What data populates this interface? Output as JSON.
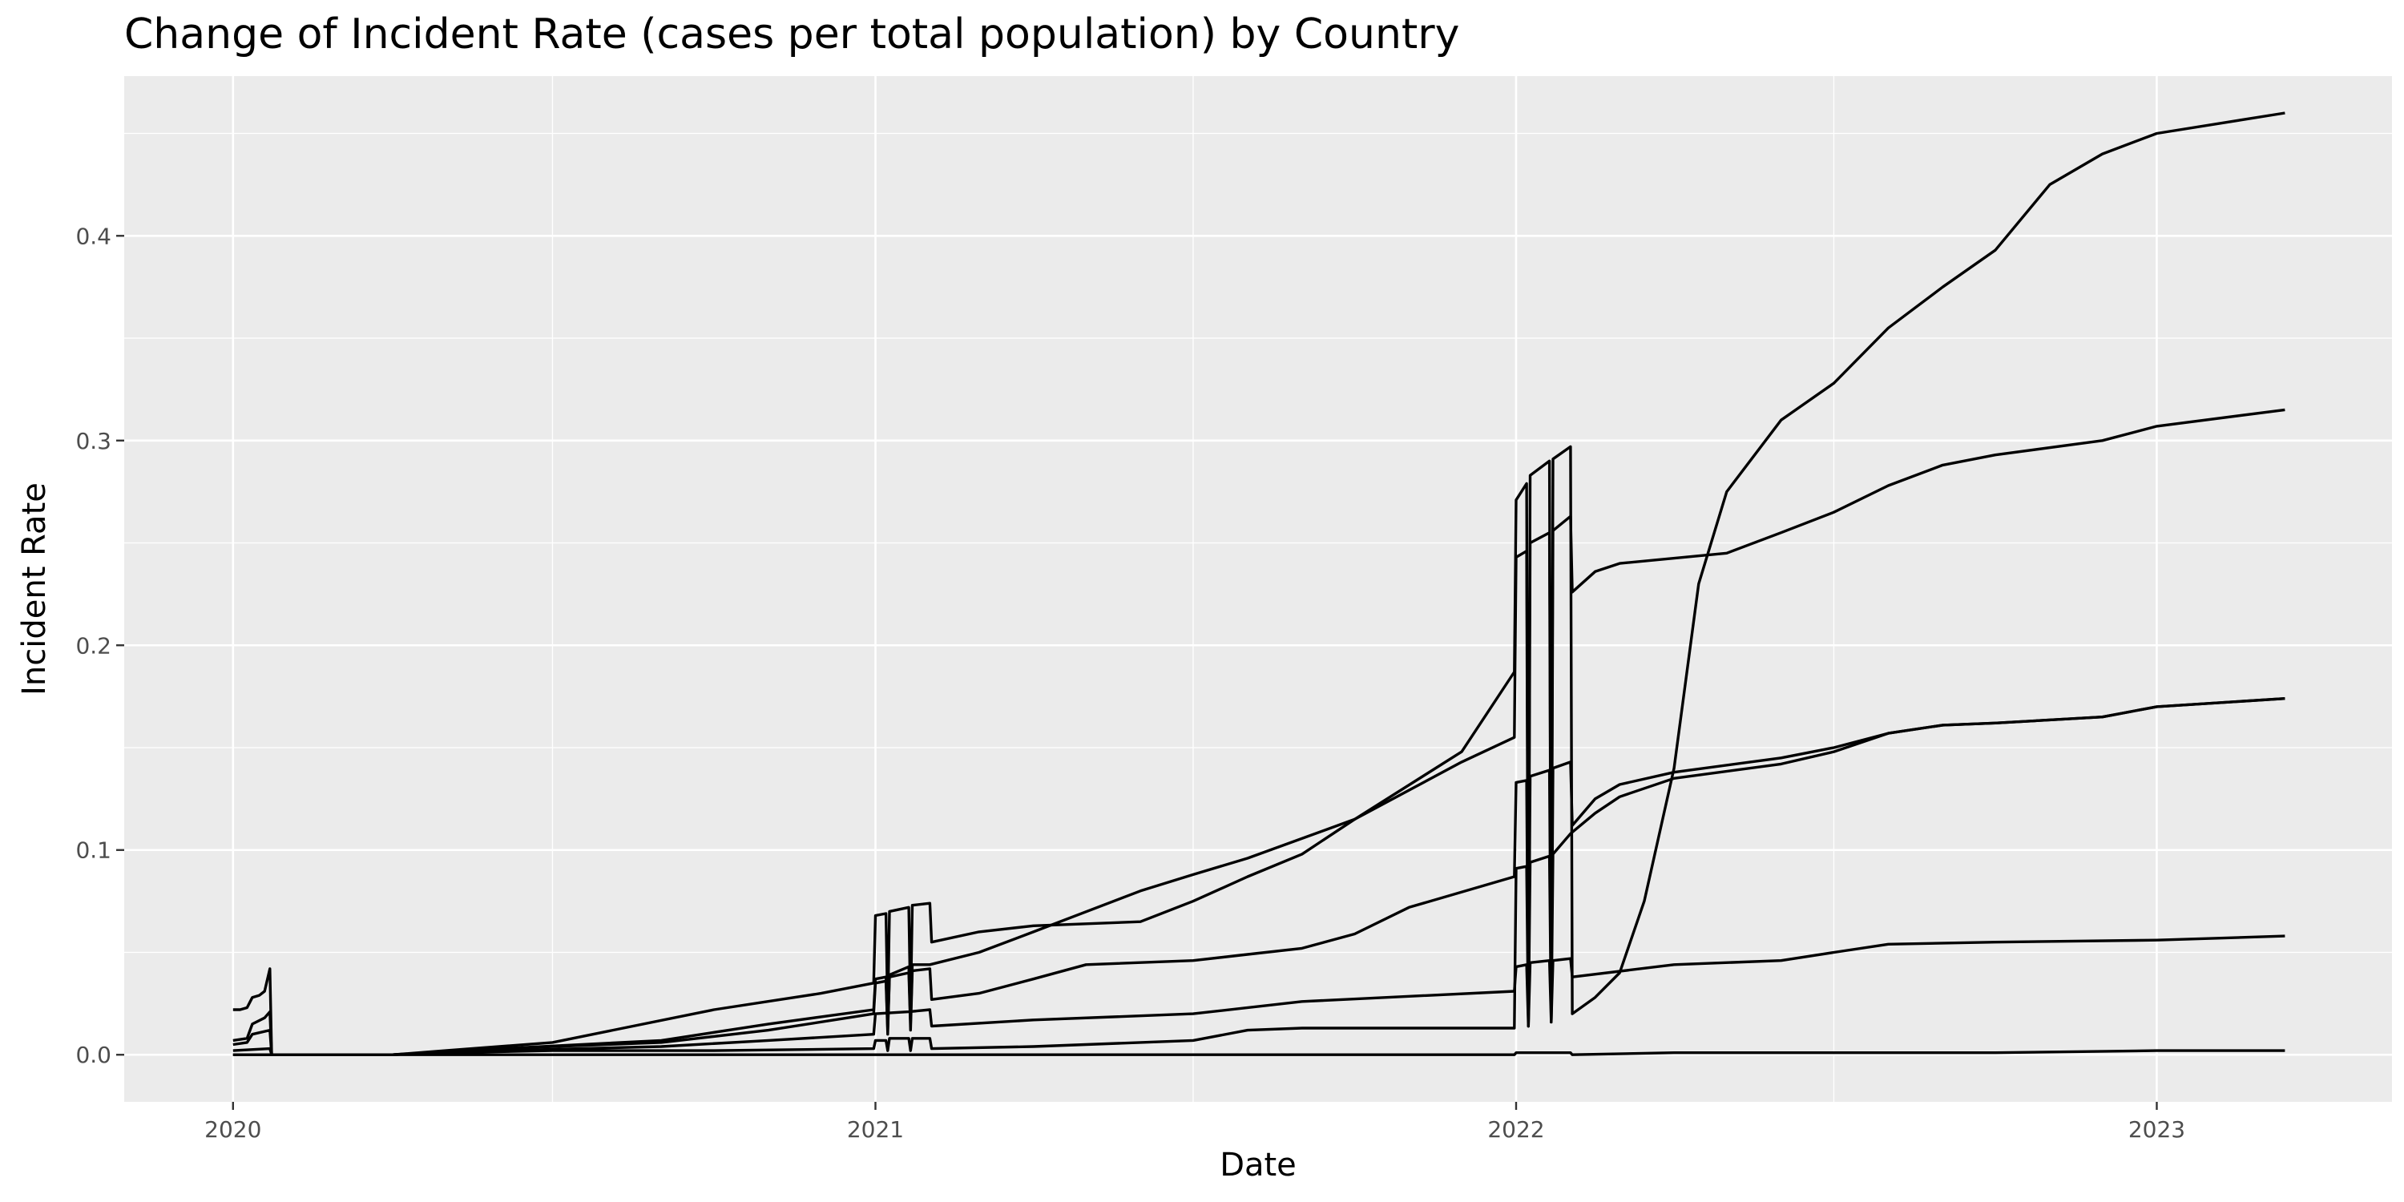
{
  "chart_data": {
    "type": "line",
    "title": "Change of Incident Rate (cases per total population) by Country",
    "xlabel": "Date",
    "ylabel": "Incident Rate",
    "x_type": "date",
    "xlim": [
      "2019-10-31",
      "2023-05-15"
    ],
    "ylim": [
      -0.023,
      0.478
    ],
    "x_ticks": [
      {
        "label": "2020",
        "date": "2020-01-01"
      },
      {
        "label": "2021",
        "date": "2021-01-01"
      },
      {
        "label": "2022",
        "date": "2022-01-01"
      },
      {
        "label": "2023",
        "date": "2023-01-01"
      }
    ],
    "x_minor_ticks": [
      "2020-07-01",
      "2021-07-01",
      "2022-07-01"
    ],
    "y_ticks": [
      0.0,
      0.1,
      0.2,
      0.3,
      0.4
    ],
    "y_tick_labels": [
      "0.0",
      "0.1",
      "0.2",
      "0.3",
      "0.4"
    ],
    "y_minor_ticks": [
      0.05,
      0.15,
      0.25,
      0.35,
      0.45
    ],
    "grid": true,
    "legend": "none",
    "colors": {
      "panel": "#ebebeb",
      "grid": "#ffffff",
      "line": "#000000",
      "tick_text": "#4d4d4d"
    },
    "series": [
      {
        "points": [
          [
            "2020-01-01",
            0.022
          ],
          [
            "2020-01-05",
            0.022
          ],
          [
            "2020-01-09",
            0.023
          ],
          [
            "2020-01-12",
            0.028
          ],
          [
            "2020-01-16",
            0.029
          ],
          [
            "2020-01-19",
            0.031
          ],
          [
            "2020-01-22",
            0.042
          ],
          [
            "2020-01-23",
            0.0
          ],
          [
            "2020-04-01",
            0.0
          ],
          [
            "2020-05-01",
            0.001
          ],
          [
            "2020-07-01",
            0.002
          ],
          [
            "2020-10-01",
            0.002
          ],
          [
            "2020-12-31",
            0.003
          ],
          [
            "2021-01-01",
            0.007
          ],
          [
            "2021-01-07",
            0.007
          ],
          [
            "2021-01-08",
            0.002
          ],
          [
            "2021-01-09",
            0.008
          ],
          [
            "2021-01-20",
            0.008
          ],
          [
            "2021-01-21",
            0.002
          ],
          [
            "2021-01-22",
            0.008
          ],
          [
            "2021-02-01",
            0.008
          ],
          [
            "2021-02-02",
            0.003
          ],
          [
            "2021-04-01",
            0.004
          ],
          [
            "2021-06-01",
            0.006
          ],
          [
            "2021-07-01",
            0.007
          ],
          [
            "2021-08-01",
            0.012
          ],
          [
            "2021-09-01",
            0.013
          ],
          [
            "2021-12-31",
            0.013
          ],
          [
            "2022-01-01",
            0.091
          ],
          [
            "2022-01-07",
            0.092
          ],
          [
            "2022-01-08",
            0.014
          ],
          [
            "2022-01-09",
            0.094
          ],
          [
            "2022-01-20",
            0.097
          ],
          [
            "2022-01-21",
            0.016
          ],
          [
            "2022-01-22",
            0.098
          ],
          [
            "2022-02-01",
            0.108
          ],
          [
            "2022-02-15",
            0.118
          ],
          [
            "2022-03-01",
            0.126
          ],
          [
            "2022-04-01",
            0.135
          ],
          [
            "2022-06-01",
            0.142
          ],
          [
            "2022-07-01",
            0.148
          ],
          [
            "2022-08-01",
            0.157
          ],
          [
            "2022-09-01",
            0.161
          ],
          [
            "2022-10-01",
            0.162
          ],
          [
            "2022-12-01",
            0.165
          ],
          [
            "2023-01-01",
            0.17
          ],
          [
            "2023-03-15",
            0.174
          ]
        ]
      },
      {
        "points": [
          [
            "2020-01-01",
            0.007
          ],
          [
            "2020-01-09",
            0.008
          ],
          [
            "2020-01-12",
            0.015
          ],
          [
            "2020-01-19",
            0.018
          ],
          [
            "2020-01-22",
            0.021
          ],
          [
            "2020-01-23",
            0.0
          ],
          [
            "2020-04-01",
            0.0
          ],
          [
            "2020-06-01",
            0.003
          ],
          [
            "2020-09-01",
            0.007
          ],
          [
            "2020-11-01",
            0.015
          ],
          [
            "2020-12-31",
            0.022
          ],
          [
            "2021-01-01",
            0.037
          ],
          [
            "2021-01-07",
            0.038
          ],
          [
            "2021-01-08",
            0.012
          ],
          [
            "2021-01-09",
            0.039
          ],
          [
            "2021-01-20",
            0.043
          ],
          [
            "2021-01-21",
            0.015
          ],
          [
            "2021-01-22",
            0.044
          ],
          [
            "2021-02-01",
            0.044
          ],
          [
            "2021-03-01",
            0.05
          ],
          [
            "2021-04-01",
            0.06
          ],
          [
            "2021-06-01",
            0.08
          ],
          [
            "2021-07-01",
            0.088
          ],
          [
            "2021-08-01",
            0.096
          ],
          [
            "2021-10-01",
            0.115
          ],
          [
            "2021-12-01",
            0.148
          ],
          [
            "2021-12-31",
            0.187
          ],
          [
            "2022-01-01",
            0.271
          ],
          [
            "2022-01-07",
            0.279
          ],
          [
            "2022-01-08",
            0.014
          ],
          [
            "2022-01-09",
            0.283
          ],
          [
            "2022-01-20",
            0.29
          ],
          [
            "2022-01-21",
            0.016
          ],
          [
            "2022-01-22",
            0.291
          ],
          [
            "2022-02-01",
            0.297
          ],
          [
            "2022-02-02",
            0.02
          ],
          [
            "2022-02-15",
            0.028
          ],
          [
            "2022-03-01",
            0.04
          ],
          [
            "2022-03-15",
            0.075
          ],
          [
            "2022-04-01",
            0.14
          ],
          [
            "2022-04-15",
            0.23
          ],
          [
            "2022-05-01",
            0.275
          ],
          [
            "2022-06-01",
            0.31
          ],
          [
            "2022-07-01",
            0.328
          ],
          [
            "2022-08-01",
            0.355
          ],
          [
            "2022-09-01",
            0.375
          ],
          [
            "2022-10-01",
            0.393
          ],
          [
            "2022-11-01",
            0.425
          ],
          [
            "2022-12-01",
            0.44
          ],
          [
            "2023-01-01",
            0.45
          ],
          [
            "2023-03-15",
            0.46
          ]
        ]
      },
      {
        "points": [
          [
            "2020-01-01",
            0.005
          ],
          [
            "2020-01-09",
            0.006
          ],
          [
            "2020-01-12",
            0.01
          ],
          [
            "2020-01-22",
            0.012
          ],
          [
            "2020-01-23",
            0.0
          ],
          [
            "2020-04-01",
            0.0
          ],
          [
            "2020-05-01",
            0.002
          ],
          [
            "2020-07-01",
            0.006
          ],
          [
            "2020-10-01",
            0.022
          ],
          [
            "2020-12-01",
            0.03
          ],
          [
            "2020-12-31",
            0.035
          ],
          [
            "2021-01-01",
            0.068
          ],
          [
            "2021-01-07",
            0.069
          ],
          [
            "2021-01-08",
            0.02
          ],
          [
            "2021-01-09",
            0.07
          ],
          [
            "2021-01-20",
            0.072
          ],
          [
            "2021-01-21",
            0.022
          ],
          [
            "2021-01-22",
            0.073
          ],
          [
            "2021-02-01",
            0.074
          ],
          [
            "2021-02-02",
            0.055
          ],
          [
            "2021-03-01",
            0.06
          ],
          [
            "2021-04-01",
            0.063
          ],
          [
            "2021-06-01",
            0.065
          ],
          [
            "2021-07-01",
            0.075
          ],
          [
            "2021-08-01",
            0.087
          ],
          [
            "2021-09-01",
            0.098
          ],
          [
            "2021-10-01",
            0.115
          ],
          [
            "2021-12-01",
            0.143
          ],
          [
            "2021-12-31",
            0.155
          ],
          [
            "2022-01-01",
            0.243
          ],
          [
            "2022-01-07",
            0.246
          ],
          [
            "2022-01-08",
            0.014
          ],
          [
            "2022-01-09",
            0.25
          ],
          [
            "2022-01-20",
            0.255
          ],
          [
            "2022-01-21",
            0.016
          ],
          [
            "2022-01-22",
            0.256
          ],
          [
            "2022-02-01",
            0.263
          ],
          [
            "2022-02-02",
            0.226
          ],
          [
            "2022-02-15",
            0.236
          ],
          [
            "2022-03-01",
            0.24
          ],
          [
            "2022-05-01",
            0.245
          ],
          [
            "2022-06-01",
            0.255
          ],
          [
            "2022-07-01",
            0.265
          ],
          [
            "2022-08-01",
            0.278
          ],
          [
            "2022-09-01",
            0.288
          ],
          [
            "2022-10-01",
            0.293
          ],
          [
            "2022-12-01",
            0.3
          ],
          [
            "2023-01-01",
            0.307
          ],
          [
            "2023-03-15",
            0.315
          ]
        ]
      },
      {
        "points": [
          [
            "2020-01-01",
            0.002
          ],
          [
            "2020-01-22",
            0.003
          ],
          [
            "2020-01-23",
            0.0
          ],
          [
            "2020-04-01",
            0.0
          ],
          [
            "2020-06-01",
            0.003
          ],
          [
            "2020-09-01",
            0.006
          ],
          [
            "2020-11-01",
            0.012
          ],
          [
            "2020-12-31",
            0.02
          ],
          [
            "2021-01-01",
            0.035
          ],
          [
            "2021-01-07",
            0.036
          ],
          [
            "2021-01-08",
            0.01
          ],
          [
            "2021-01-09",
            0.038
          ],
          [
            "2021-01-20",
            0.04
          ],
          [
            "2021-01-21",
            0.012
          ],
          [
            "2021-01-22",
            0.041
          ],
          [
            "2021-02-01",
            0.042
          ],
          [
            "2021-02-02",
            0.027
          ],
          [
            "2021-03-01",
            0.03
          ],
          [
            "2021-04-01",
            0.037
          ],
          [
            "2021-05-01",
            0.044
          ],
          [
            "2021-07-01",
            0.046
          ],
          [
            "2021-08-01",
            0.049
          ],
          [
            "2021-09-01",
            0.052
          ],
          [
            "2021-10-01",
            0.059
          ],
          [
            "2021-11-01",
            0.072
          ],
          [
            "2021-12-31",
            0.087
          ],
          [
            "2022-01-01",
            0.133
          ],
          [
            "2022-01-07",
            0.134
          ],
          [
            "2022-01-08",
            0.014
          ],
          [
            "2022-01-09",
            0.136
          ],
          [
            "2022-01-20",
            0.139
          ],
          [
            "2022-01-21",
            0.016
          ],
          [
            "2022-01-22",
            0.14
          ],
          [
            "2022-02-01",
            0.143
          ],
          [
            "2022-02-02",
            0.112
          ],
          [
            "2022-02-15",
            0.125
          ],
          [
            "2022-03-01",
            0.132
          ],
          [
            "2022-04-01",
            0.138
          ],
          [
            "2022-06-01",
            0.145
          ],
          [
            "2022-07-01",
            0.15
          ],
          [
            "2022-08-01",
            0.157
          ],
          [
            "2022-09-01",
            0.161
          ],
          [
            "2022-10-01",
            0.162
          ],
          [
            "2022-12-01",
            0.165
          ],
          [
            "2023-01-01",
            0.17
          ],
          [
            "2023-03-15",
            0.174
          ]
        ]
      },
      {
        "points": [
          [
            "2020-01-01",
            0.0
          ],
          [
            "2020-04-01",
            0.0
          ],
          [
            "2020-06-01",
            0.002
          ],
          [
            "2020-09-01",
            0.004
          ],
          [
            "2020-11-01",
            0.007
          ],
          [
            "2020-12-31",
            0.01
          ],
          [
            "2021-01-01",
            0.02
          ],
          [
            "2021-01-20",
            0.021
          ],
          [
            "2021-02-01",
            0.022
          ],
          [
            "2021-02-02",
            0.014
          ],
          [
            "2021-04-01",
            0.017
          ],
          [
            "2021-07-01",
            0.02
          ],
          [
            "2021-09-01",
            0.026
          ],
          [
            "2021-12-31",
            0.031
          ],
          [
            "2022-01-01",
            0.043
          ],
          [
            "2022-01-07",
            0.044
          ],
          [
            "2022-01-08",
            0.014
          ],
          [
            "2022-01-09",
            0.045
          ],
          [
            "2022-01-20",
            0.046
          ],
          [
            "2022-01-21",
            0.016
          ],
          [
            "2022-01-22",
            0.046
          ],
          [
            "2022-02-01",
            0.047
          ],
          [
            "2022-02-02",
            0.038
          ],
          [
            "2022-04-01",
            0.044
          ],
          [
            "2022-06-01",
            0.046
          ],
          [
            "2022-07-01",
            0.05
          ],
          [
            "2022-08-01",
            0.054
          ],
          [
            "2022-10-01",
            0.055
          ],
          [
            "2023-01-01",
            0.056
          ],
          [
            "2023-03-15",
            0.058
          ]
        ]
      },
      {
        "points": [
          [
            "2020-01-01",
            0.0
          ],
          [
            "2021-12-31",
            0.0
          ],
          [
            "2022-01-01",
            0.001
          ],
          [
            "2022-02-01",
            0.001
          ],
          [
            "2022-02-02",
            0.0
          ],
          [
            "2022-04-01",
            0.001
          ],
          [
            "2022-10-01",
            0.001
          ],
          [
            "2023-01-01",
            0.002
          ],
          [
            "2023-03-15",
            0.002
          ]
        ]
      }
    ]
  }
}
